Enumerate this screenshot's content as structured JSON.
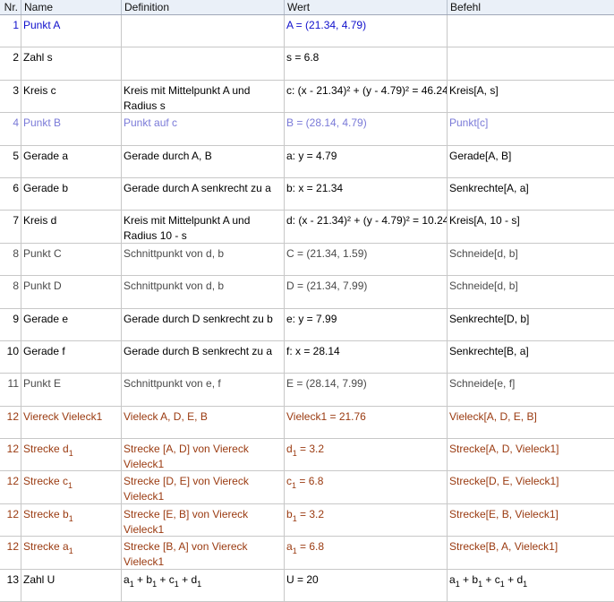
{
  "colors": {
    "blue": "#1010cc",
    "light": "#7a7ad8",
    "black": "#000000",
    "gray": "#4a4a4a",
    "brown": "#9a3a10"
  },
  "headers": [
    "Nr.",
    "Name",
    "Definition",
    "Wert",
    "Befehl"
  ],
  "rows": [
    {
      "nr": "1",
      "name": "Punkt A",
      "def": "",
      "val": "A = (21.34, 4.79)",
      "cmd": "",
      "color": "blue"
    },
    {
      "nr": "2",
      "name": "Zahl s",
      "def": "",
      "val": "s = 6.8",
      "cmd": "",
      "color": "black"
    },
    {
      "nr": "3",
      "name": "Kreis c",
      "def": "Kreis mit Mittelpunkt A und Radius s",
      "val": "c: (x - 21.34)² + (y - 4.79)² = 46.24",
      "cmd": "Kreis[A, s]",
      "color": "black"
    },
    {
      "nr": "4",
      "name": "Punkt B",
      "def": "Punkt auf c",
      "val": "B = (28.14, 4.79)",
      "cmd": "Punkt[c]",
      "color": "light"
    },
    {
      "nr": "5",
      "name": "Gerade a",
      "def": "Gerade durch A, B",
      "val": "a: y = 4.79",
      "cmd": "Gerade[A, B]",
      "color": "black"
    },
    {
      "nr": "6",
      "name": "Gerade b",
      "def": "Gerade durch A senkrecht zu a",
      "val": "b: x = 21.34",
      "cmd": "Senkrechte[A, a]",
      "color": "black"
    },
    {
      "nr": "7",
      "name": "Kreis d",
      "def": "Kreis mit Mittelpunkt A und Radius 10 - s",
      "val": "d: (x - 21.34)² + (y - 4.79)² = 10.24",
      "cmd": "Kreis[A, 10 - s]",
      "color": "black"
    },
    {
      "nr": "8",
      "name": "Punkt C",
      "def": "Schnittpunkt von d, b",
      "val": "C = (21.34, 1.59)",
      "cmd": "Schneide[d, b]",
      "color": "gray"
    },
    {
      "nr": "8",
      "name": "Punkt D",
      "def": "Schnittpunkt von d, b",
      "val": "D = (21.34, 7.99)",
      "cmd": "Schneide[d, b]",
      "color": "gray"
    },
    {
      "nr": "9",
      "name": "Gerade e",
      "def": "Gerade durch D senkrecht zu b",
      "val": "e: y = 7.99",
      "cmd": "Senkrechte[D, b]",
      "color": "black"
    },
    {
      "nr": "10",
      "name": "Gerade f",
      "def": "Gerade durch B senkrecht zu a",
      "val": "f: x = 28.14",
      "cmd": "Senkrechte[B, a]",
      "color": "black"
    },
    {
      "nr": "11",
      "name": "Punkt E",
      "def": "Schnittpunkt von e, f",
      "val": "E = (28.14, 7.99)",
      "cmd": "Schneide[e, f]",
      "color": "gray"
    },
    {
      "nr": "12",
      "name": "Viereck Vieleck1",
      "def": "Vieleck A, D, E, B",
      "val": "Vieleck1 = 21.76",
      "cmd": "Vieleck[A, D, E, B]",
      "color": "brown"
    },
    {
      "nr": "12",
      "name": "Strecke d_1",
      "def": "Strecke [A, D] von Viereck Vieleck1",
      "val": "d_1 = 3.2",
      "cmd": "Strecke[A, D, Vieleck1]",
      "color": "brown"
    },
    {
      "nr": "12",
      "name": "Strecke c_1",
      "def": "Strecke [D, E] von Viereck Vieleck1",
      "val": "c_1 = 6.8",
      "cmd": "Strecke[D, E, Vieleck1]",
      "color": "brown"
    },
    {
      "nr": "12",
      "name": "Strecke b_1",
      "def": "Strecke [E, B] von Viereck Vieleck1",
      "val": "b_1 = 3.2",
      "cmd": "Strecke[E, B, Vieleck1]",
      "color": "brown"
    },
    {
      "nr": "12",
      "name": "Strecke a_1",
      "def": "Strecke [B, A] von Viereck Vieleck1",
      "val": "a_1 = 6.8",
      "cmd": "Strecke[B, A, Vieleck1]",
      "color": "brown"
    },
    {
      "nr": "13",
      "name": "Zahl U",
      "def": "a_1 + b_1 + c_1 + d_1",
      "val": "U = 20",
      "cmd": "a_1 + b_1 + c_1 + d_1",
      "color": "black"
    }
  ]
}
